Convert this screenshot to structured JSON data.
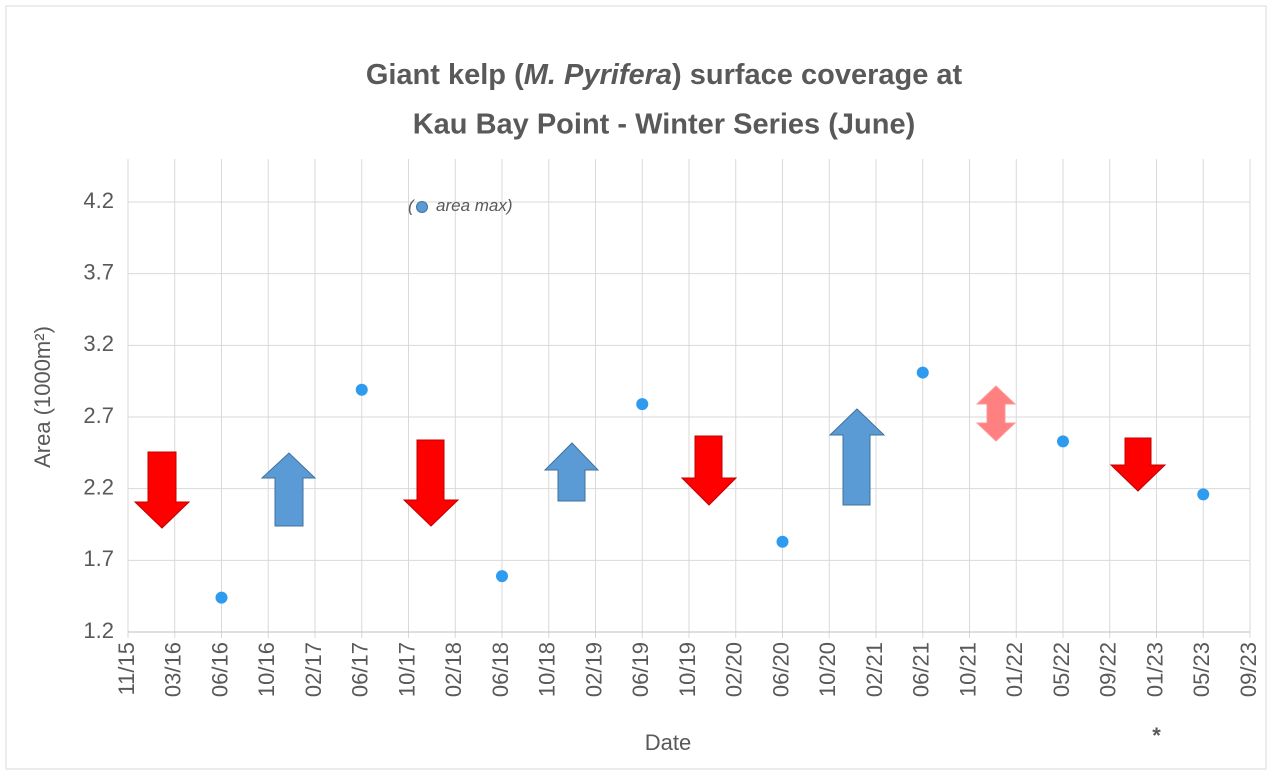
{
  "chart_data": {
    "type": "scatter",
    "title": [
      "Giant kelp (",
      "M. Pyrifera",
      ") surface coverage at"
    ],
    "title2": "Kau Bay Point - Winter Series (June)",
    "xlabel": "Date",
    "ylabel": "Area  (1000m²)",
    "xticks": [
      "11/15",
      "03/16",
      "06/16",
      "10/16",
      "02/17",
      "06/17",
      "10/17",
      "02/18",
      "06/18",
      "10/18",
      "02/19",
      "06/19",
      "10/19",
      "02/20",
      "06/20",
      "10/20",
      "02/21",
      "06/21",
      "10/21",
      "01/22",
      "05/22",
      "09/22",
      "01/23",
      "05/23",
      "09/23"
    ],
    "ylim": [
      1.2,
      4.5
    ],
    "yticks": [
      1.2,
      1.7,
      2.2,
      2.7,
      3.2,
      3.7,
      4.2
    ],
    "grid": true,
    "series": [
      {
        "name": "area max",
        "color": "#2e9bef",
        "x": [
          "06/16",
          "06/17",
          "06/18",
          "06/19",
          "06/20",
          "06/21",
          "05/22",
          "05/23"
        ],
        "values": [
          1.44,
          2.89,
          1.59,
          2.79,
          1.83,
          3.01,
          2.53,
          2.16
        ]
      }
    ],
    "legend_brackets": [
      "(",
      ")"
    ],
    "annotation": {
      "text": "*",
      "x": "01/23"
    }
  }
}
